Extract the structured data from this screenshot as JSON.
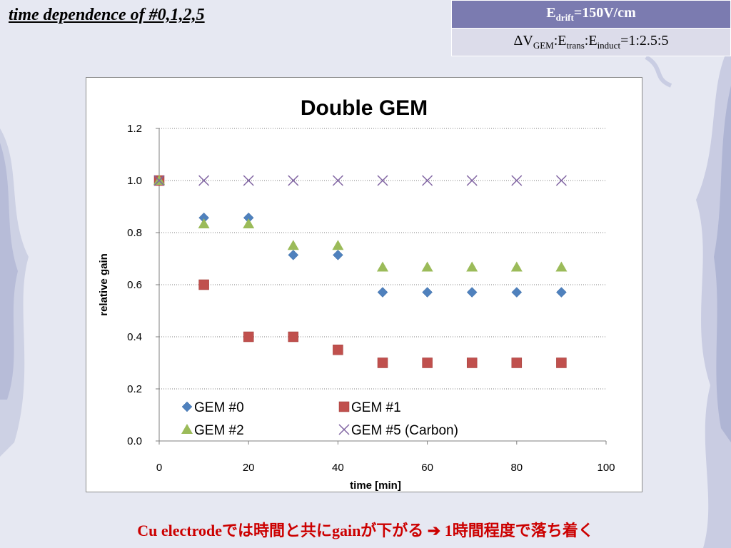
{
  "slide": {
    "title": "time dependence of #0,1,2,5",
    "footnote": "Cu electrodeでは時間と共にgainが下がる ➔ 1時間程度で落ち着く"
  },
  "params": {
    "drift": {
      "base": "E",
      "sub": "drift",
      "rest": "=150V/cm"
    },
    "ratio": {
      "p1": "ΔV",
      "s1": "GEM",
      "p2": ":E",
      "s2": "trans",
      "p3": ":E",
      "s3": "induct",
      "p4": "=1:2.5:5"
    }
  },
  "colors": {
    "accent_header": "#7b7bb0",
    "footnote": "#cc0000",
    "gem0": "#4f81bd",
    "gem1": "#c0504d",
    "gem2": "#9bbb59",
    "gem5": "#8064a2"
  },
  "chart_data": {
    "type": "scatter",
    "title": "Double GEM",
    "xlabel": "time [min]",
    "ylabel": "relative gain",
    "xlim": [
      0,
      100
    ],
    "ylim": [
      0,
      1.2
    ],
    "xticks": [
      "0",
      "20",
      "40",
      "60",
      "80",
      "100"
    ],
    "yticks": [
      "0.0",
      "0.2",
      "0.4",
      "0.6",
      "0.8",
      "1.0",
      "1.2"
    ],
    "grid": "horizontal-dotted",
    "legend_position": "bottom-left inside plot",
    "series": [
      {
        "name": "GEM #0",
        "marker": "diamond",
        "color": "#4f81bd",
        "x": [
          0,
          10,
          20,
          30,
          40,
          50,
          60,
          70,
          80,
          90
        ],
        "y": [
          1.0,
          0.857,
          0.857,
          0.714,
          0.714,
          0.571,
          0.571,
          0.571,
          0.571,
          0.571
        ]
      },
      {
        "name": "GEM #1",
        "marker": "square",
        "color": "#c0504d",
        "x": [
          0,
          10,
          20,
          30,
          40,
          50,
          60,
          70,
          80,
          90
        ],
        "y": [
          1.0,
          0.6,
          0.4,
          0.4,
          0.35,
          0.3,
          0.3,
          0.3,
          0.3,
          0.3
        ]
      },
      {
        "name": "GEM #2",
        "marker": "triangle",
        "color": "#9bbb59",
        "x": [
          0,
          10,
          20,
          30,
          40,
          50,
          60,
          70,
          80,
          90
        ],
        "y": [
          1.0,
          0.833,
          0.833,
          0.75,
          0.75,
          0.667,
          0.667,
          0.667,
          0.667,
          0.667
        ]
      },
      {
        "name": "GEM #5 (Carbon)",
        "marker": "x",
        "color": "#8064a2",
        "x": [
          0,
          10,
          20,
          30,
          40,
          50,
          60,
          70,
          80,
          90
        ],
        "y": [
          1.0,
          1.0,
          1.0,
          1.0,
          1.0,
          1.0,
          1.0,
          1.0,
          1.0,
          1.0
        ]
      }
    ]
  }
}
